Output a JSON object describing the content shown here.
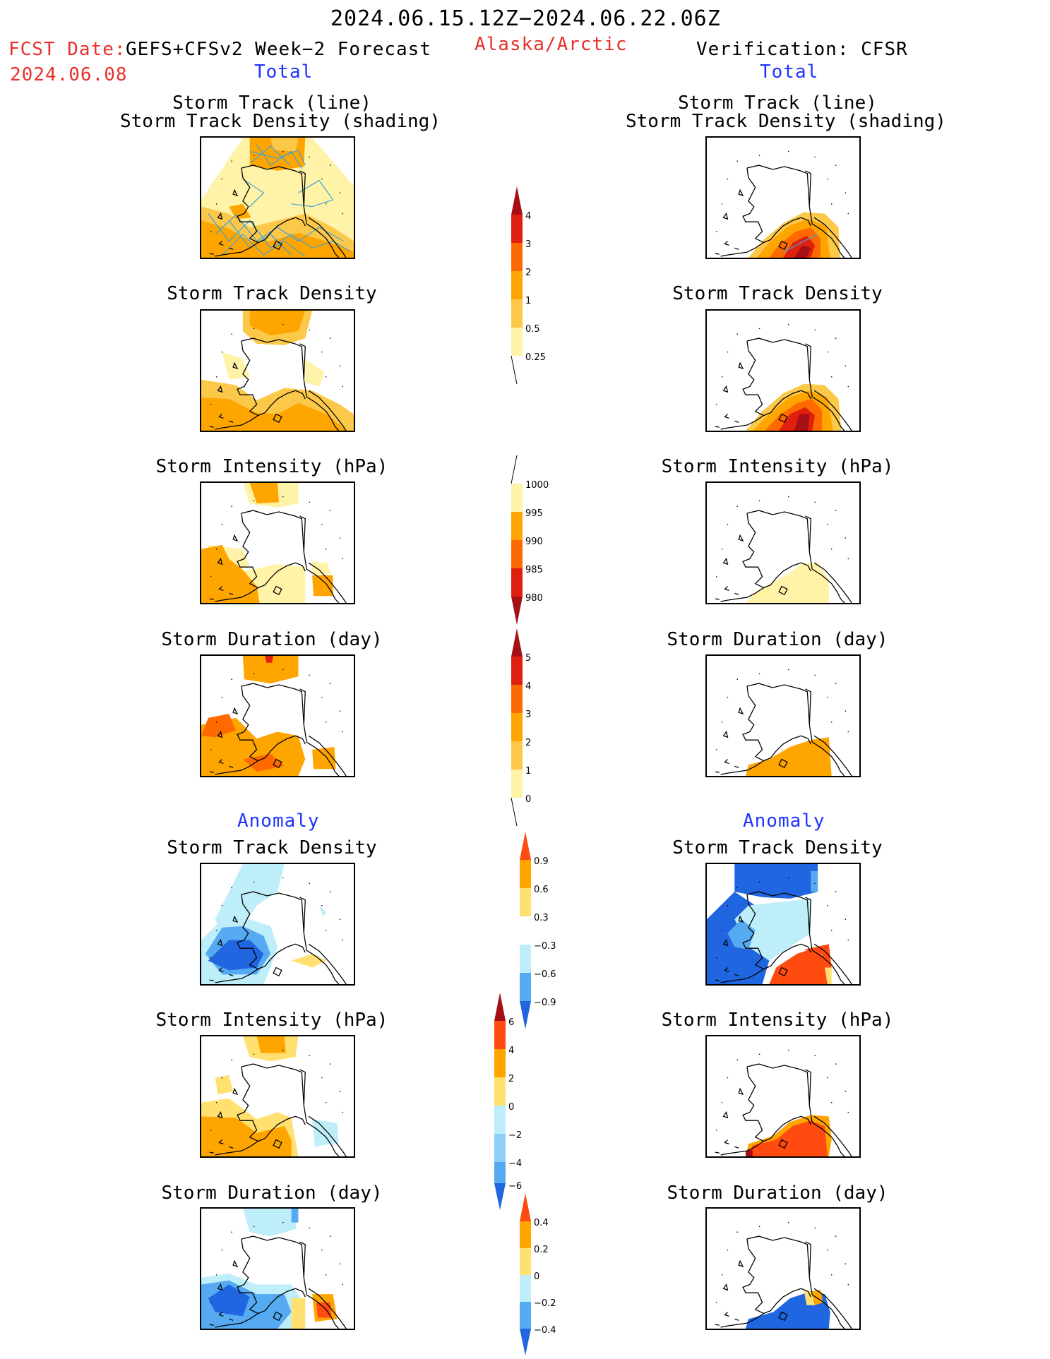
{
  "header": {
    "period": "2024.06.15.12Z−2024.06.22.06Z",
    "fcst_label": "FCST Date:",
    "fcst_model": "GEFS+CFSv2 Week−2 Forecast",
    "fcst_date": "2024.06.08",
    "region": "Alaska/Arctic",
    "verification": "Verification: CFSR",
    "total_left": "Total",
    "total_right": "Total",
    "anomaly_left": "Anomaly",
    "anomaly_right": "Anomaly"
  },
  "panels": {
    "l1": {
      "title1": "Storm Track (line)",
      "title2": "Storm Track Density (shading)"
    },
    "r1": {
      "title1": "Storm Track (line)",
      "title2": "Storm Track Density (shading)"
    },
    "l2": {
      "title": "Storm Track Density"
    },
    "r2": {
      "title": "Storm Track Density"
    },
    "l3": {
      "title": "Storm Intensity (hPa)"
    },
    "r3": {
      "title": "Storm Intensity (hPa)"
    },
    "l4": {
      "title": "Storm Duration (day)"
    },
    "r4": {
      "title": "Storm Duration (day)"
    },
    "l5": {
      "title": "Storm Track Density"
    },
    "r5": {
      "title": "Storm Track Density"
    },
    "l6": {
      "title": "Storm Intensity (hPa)"
    },
    "r6": {
      "title": "Storm Intensity (hPa)"
    },
    "l7": {
      "title": "Storm Duration (day)"
    },
    "r7": {
      "title": "Storm Duration (day)"
    }
  },
  "colorbars": {
    "density": {
      "labels": [
        "4",
        "3",
        "2",
        "1",
        "0.5",
        "0.25"
      ],
      "colors": [
        "#a50f15",
        "#e0200f",
        "#ff6a00",
        "#ffa500",
        "#fcc84a",
        "#fff3a8"
      ]
    },
    "intensity": {
      "labels": [
        "1000",
        "995",
        "990",
        "985",
        "980"
      ],
      "colors": [
        "#fff3a8",
        "#ffa500",
        "#ff6a00",
        "#e0200f",
        "#a50f15"
      ]
    },
    "duration": {
      "labels": [
        "5",
        "4",
        "3",
        "2",
        "1",
        "0"
      ],
      "colors": [
        "#a50f15",
        "#e0200f",
        "#ff6a00",
        "#ffa500",
        "#fcc84a",
        "#fff3a8"
      ]
    },
    "anom_density": {
      "labels": [
        "0.9",
        "0.6",
        "0.3",
        "−0.3",
        "−0.6",
        "−0.9"
      ],
      "colors": [
        "#ff4a10",
        "#ffa500",
        "#ffe070",
        "#ffffff",
        "#bdeefa",
        "#55aaf2",
        "#1f66e0"
      ]
    },
    "anom_intensity": {
      "labels": [
        "6",
        "4",
        "2",
        "0",
        "−2",
        "−4",
        "−6"
      ],
      "colors": [
        "#a50f15",
        "#ff4a10",
        "#ffa500",
        "#ffe070",
        "#bdeefa",
        "#8ccff7",
        "#55aaf2",
        "#1f66e0"
      ]
    },
    "anom_duration": {
      "labels": [
        "0.4",
        "0.2",
        "0",
        "−0.2",
        "−0.4"
      ],
      "colors": [
        "#ff4a10",
        "#ffa500",
        "#ffe070",
        "#bdeefa",
        "#55aaf2",
        "#1f66e0"
      ]
    }
  }
}
